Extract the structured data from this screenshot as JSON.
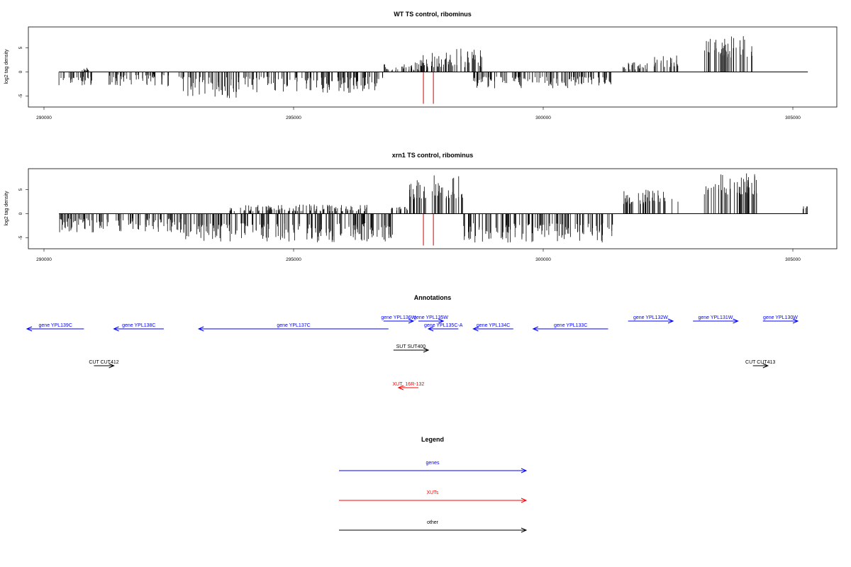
{
  "chart_data": [
    {
      "type": "bar",
      "title": "WT TS control, ribominus",
      "xlabel": "",
      "ylabel": "log2 tag density",
      "xlim": [
        289400,
        305800
      ],
      "ylim": [
        -7,
        9
      ],
      "xticks": [
        "290000",
        "295000",
        "300000",
        "305000"
      ],
      "yticks": [
        "-5",
        "0",
        "5"
      ],
      "baseline_range": [
        290300,
        305300
      ],
      "series": [
        {
          "values": [
            {
              "x": [
                290300,
                291000
              ],
              "y": [
                -1,
                -3
              ]
            },
            {
              "x": [
                290700,
                290900
              ],
              "y": [
                0.2,
                1
              ]
            },
            {
              "x": [
                291300,
                292500
              ],
              "y": [
                -0.5,
                -3
              ]
            },
            {
              "x": [
                292700,
                293900
              ],
              "y": [
                -1,
                -5.5
              ]
            },
            {
              "x": [
                293900,
                296800
              ],
              "y": [
                -1,
                -4.5
              ]
            },
            {
              "x": [
                296800,
                297700
              ],
              "y": [
                0.3,
                2
              ]
            },
            {
              "x": [
                297500,
                298100
              ],
              "y": [
                1,
                4
              ]
            },
            {
              "x": [
                298100,
                298800
              ],
              "y": [
                1,
                5
              ]
            },
            {
              "x": [
                298600,
                300900
              ],
              "y": [
                -1,
                -3.5
              ]
            },
            {
              "x": [
                300900,
                301400
              ],
              "y": [
                -1,
                -3
              ]
            },
            {
              "x": [
                301600,
                302100
              ],
              "y": [
                0.5,
                2
              ]
            },
            {
              "x": [
                302200,
                302700
              ],
              "y": [
                1,
                3.5
              ]
            },
            {
              "x": [
                303200,
                304200
              ],
              "y": [
                3,
                7.5
              ]
            }
          ]
        }
      ],
      "reference_lines": [
        297600,
        297800
      ]
    },
    {
      "type": "bar",
      "title": "xrn1 TS control, ribominus",
      "xlabel": "",
      "ylabel": "log2 tag density",
      "xlim": [
        289400,
        305800
      ],
      "ylim": [
        -7,
        9
      ],
      "xticks": [
        "290000",
        "295000",
        "300000",
        "305000"
      ],
      "yticks": [
        "-5",
        "0",
        "5"
      ],
      "baseline_range": [
        290300,
        305300
      ],
      "series": [
        {
          "values": [
            {
              "x": [
                290300,
                292800
              ],
              "y": [
                -1,
                -4
              ]
            },
            {
              "x": [
                292800,
                297000
              ],
              "y": [
                -2,
                -6
              ]
            },
            {
              "x": [
                293700,
                296500
              ],
              "y": [
                0.5,
                2
              ]
            },
            {
              "x": [
                296900,
                297300
              ],
              "y": [
                0.5,
                1.5
              ]
            },
            {
              "x": [
                297300,
                298400
              ],
              "y": [
                3,
                8
              ]
            },
            {
              "x": [
                298400,
                301400
              ],
              "y": [
                -2,
                -6
              ]
            },
            {
              "x": [
                301600,
                302700
              ],
              "y": [
                2,
                5
              ]
            },
            {
              "x": [
                303200,
                304300
              ],
              "y": [
                4,
                8.5
              ]
            },
            {
              "x": [
                305200,
                305300
              ],
              "y": [
                1,
                2
              ]
            }
          ]
        }
      ],
      "reference_lines": [
        297600,
        297800
      ]
    },
    {
      "type": "other",
      "title": "Annotations",
      "annotations": [
        {
          "label": "gene YPL139C",
          "color": "#0000ff",
          "x": [
            289400,
            290800
          ],
          "strand": "-",
          "row": 1
        },
        {
          "label": "gene YPL138C",
          "color": "#0000ff",
          "x": [
            291400,
            292400
          ],
          "strand": "-",
          "row": 1
        },
        {
          "label": "gene YPL137C",
          "color": "#0000ff",
          "x": [
            293100,
            296900
          ],
          "strand": "-",
          "row": 1
        },
        {
          "label": "gene YPL136W",
          "color": "#0000ff",
          "x": [
            296800,
            297400
          ],
          "strand": "+",
          "row": 0
        },
        {
          "label": "gene YPL135W",
          "color": "#0000ff",
          "x": [
            297500,
            298000
          ],
          "strand": "+",
          "row": 0
        },
        {
          "label": "gene YPL135C-A",
          "color": "#0000ff",
          "x": [
            297700,
            298300
          ],
          "strand": "-",
          "row": 1
        },
        {
          "label": "gene YPL134C",
          "color": "#0000ff",
          "x": [
            298600,
            299400
          ],
          "strand": "-",
          "row": 1
        },
        {
          "label": "gene YPL133C",
          "color": "#0000ff",
          "x": [
            299800,
            301300
          ],
          "strand": "-",
          "row": 1
        },
        {
          "label": "gene YPL132W",
          "color": "#0000ff",
          "x": [
            301700,
            302600
          ],
          "strand": "+",
          "row": 0
        },
        {
          "label": "gene YPL131W",
          "color": "#0000ff",
          "x": [
            303000,
            303900
          ],
          "strand": "+",
          "row": 0
        },
        {
          "label": "gene YPL130W",
          "color": "#0000ff",
          "x": [
            304400,
            305100
          ],
          "strand": "+",
          "row": 0
        },
        {
          "label": "SUT SUT400",
          "color": "#000000",
          "x": [
            297000,
            297700
          ],
          "strand": "+",
          "row": 2
        },
        {
          "label": "CUT CUT412",
          "color": "#000000",
          "x": [
            291000,
            291400
          ],
          "strand": "+",
          "row": 3
        },
        {
          "label": "CUT CUT413",
          "color": "#000000",
          "x": [
            304200,
            304500
          ],
          "strand": "+",
          "row": 3
        },
        {
          "label": "XUT_16R-132",
          "color": "#ff0000",
          "x": [
            297100,
            297500
          ],
          "strand": "-",
          "row": 4
        }
      ]
    },
    {
      "type": "other",
      "title": "Legend",
      "legend": [
        {
          "label": "genes",
          "color": "#0000ff"
        },
        {
          "label": "XUTs",
          "color": "#ff0000"
        },
        {
          "label": "other",
          "color": "#000000"
        }
      ]
    }
  ]
}
